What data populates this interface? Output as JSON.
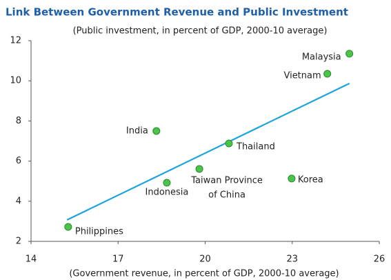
{
  "chart_data": {
    "type": "scatter",
    "title": "Link Between Government Revenue and Public Investment",
    "subtitle": "(Public investment, in percent of GDP, 2000-10 average)",
    "x_label": "(Government revenue, in percent of GDP, 2000-10 average)",
    "xlim": [
      14,
      26
    ],
    "xticks": [
      14,
      17,
      20,
      23,
      26
    ],
    "ylim": [
      2,
      12
    ],
    "yticks": [
      2,
      4,
      6,
      8,
      10,
      12
    ],
    "color": "#4cc44c",
    "trend_color": "#1ba3dc",
    "points": [
      {
        "label": [
          "Philippines"
        ],
        "x": 15.28,
        "y": 2.72
      },
      {
        "label": [
          "Indonesia"
        ],
        "x": 18.68,
        "y": 4.92
      },
      {
        "label": [
          "Taiwan Province",
          "of China"
        ],
        "x": 19.8,
        "y": 5.61
      },
      {
        "label": [
          "Thailand"
        ],
        "x": 20.82,
        "y": 6.88
      },
      {
        "label": [
          "India"
        ],
        "x": 18.32,
        "y": 7.5
      },
      {
        "label": [
          "Korea"
        ],
        "x": 22.98,
        "y": 5.13
      },
      {
        "label": [
          "Vietnam"
        ],
        "x": 24.21,
        "y": 10.35
      },
      {
        "label": [
          "Malaysia"
        ],
        "x": 24.97,
        "y": 11.35
      }
    ],
    "trendline": {
      "x": [
        15.24,
        24.97
      ],
      "y": [
        3.07,
        9.87
      ]
    }
  }
}
